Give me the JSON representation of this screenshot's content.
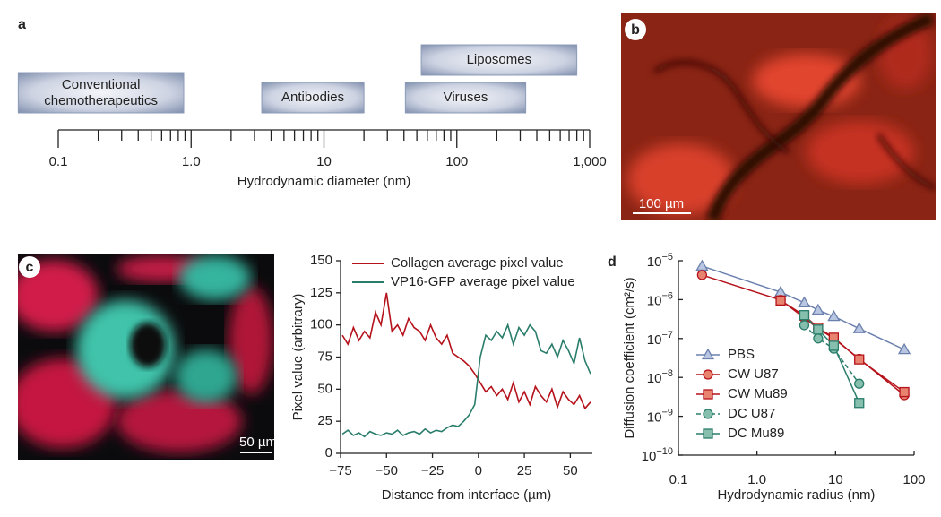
{
  "chart_data": [
    {
      "type": "range",
      "panel_label": "a",
      "xlabel": "Hydrodynamic diameter (nm)",
      "log_x": true,
      "xlim": [
        0.1,
        1000
      ],
      "xticks": [
        0.1,
        {
          "value": 1,
          "label": "1.0"
        },
        10,
        100,
        {
          "value": 1000,
          "label": "1,000"
        }
      ],
      "categories": [
        "Conventional chemotherapeutics",
        "Antibodies",
        "Viruses",
        "Liposomes"
      ],
      "ranges": [
        [
          0.05,
          0.88
        ],
        [
          3.4,
          20
        ],
        [
          41,
          330
        ],
        [
          54,
          800
        ]
      ],
      "color": "#8c9bb8"
    },
    {
      "type": "line",
      "xlabel": "Distance from interface (µm)",
      "ylabel": "Pixel value (arbitrary)",
      "xlim": [
        -75,
        62
      ],
      "ylim": [
        0,
        150
      ],
      "xticks": [
        {
          "value": -75,
          "label": "−75"
        },
        {
          "value": -50,
          "label": "−50"
        },
        {
          "value": -25,
          "label": "−25"
        },
        0,
        25,
        50
      ],
      "yticks": [
        0,
        25,
        50,
        75,
        100,
        125,
        150
      ],
      "legend": "upper center",
      "x": [
        -74,
        -71,
        -68,
        -65,
        -62,
        -59,
        -56,
        -53,
        -50,
        -47,
        -44,
        -41,
        -38,
        -35,
        -32,
        -29,
        -26,
        -23,
        -20,
        -17,
        -14,
        -11,
        -8,
        -5,
        -2,
        1,
        4,
        7,
        10,
        13,
        16,
        19,
        22,
        25,
        28,
        31,
        34,
        37,
        40,
        43,
        46,
        49,
        52,
        55,
        58,
        61
      ],
      "series": [
        {
          "name": "Collagen average pixel value",
          "color": "#b5121b",
          "values": [
            92,
            85,
            98,
            88,
            95,
            90,
            110,
            100,
            125,
            95,
            100,
            92,
            105,
            98,
            95,
            88,
            100,
            90,
            85,
            92,
            78,
            75,
            72,
            68,
            62,
            55,
            48,
            52,
            45,
            50,
            42,
            55,
            40,
            48,
            38,
            52,
            45,
            40,
            50,
            36,
            48,
            42,
            38,
            45,
            35,
            40
          ]
        },
        {
          "name": "VP16-GFP average pixel value",
          "color": "#2a7d6b",
          "values": [
            15,
            18,
            14,
            16,
            13,
            17,
            15,
            14,
            16,
            15,
            18,
            14,
            16,
            17,
            15,
            19,
            16,
            18,
            17,
            20,
            22,
            21,
            25,
            30,
            38,
            75,
            92,
            88,
            95,
            90,
            100,
            85,
            98,
            92,
            100,
            95,
            80,
            78,
            85,
            75,
            88,
            80,
            70,
            90,
            72,
            62
          ]
        }
      ]
    },
    {
      "type": "scatter",
      "panel_label": "d",
      "xlabel": "Hydrodynamic radius (nm)",
      "ylabel": "Diffusion coefficient (cm²/s)",
      "log_x": true,
      "log_y": true,
      "xlim": [
        0.1,
        100
      ],
      "ylim": [
        1e-10,
        1e-05
      ],
      "xticks": [
        0.1,
        {
          "value": 1,
          "label": "1.0"
        },
        10,
        100
      ],
      "yticks": [
        {
          "value": 1e-10,
          "label": "10−10"
        },
        {
          "value": 1e-09,
          "label": "10−9"
        },
        {
          "value": 1e-08,
          "label": "10−8"
        },
        {
          "value": 1e-07,
          "label": "10−7"
        },
        {
          "value": 1e-06,
          "label": "10−6"
        },
        {
          "value": 1e-05,
          "label": "10−5"
        }
      ],
      "legend": "lower left",
      "x": [
        0.2,
        2,
        4,
        6,
        9.5,
        20,
        75
      ],
      "series": [
        {
          "name": "PBS",
          "color": "#6b80ad",
          "fill": "#b9c6e2",
          "marker": "triangle",
          "values": [
            7.3e-06,
            1.56e-06,
            8.3e-07,
            5.4e-07,
            3.7e-07,
            1.8e-07,
            5.2e-08
          ]
        },
        {
          "name": "CW U87",
          "color": "#b5121b",
          "fill": "#e8836f",
          "marker": "circle",
          "values": [
            4.3e-06,
            9.8e-07,
            3.4e-07,
            1.8e-07,
            1e-07,
            3e-08,
            3.5e-09
          ]
        },
        {
          "name": "CW Mu89",
          "color": "#b5121b",
          "fill": "#e8836f",
          "marker": "square",
          "values": [
            null,
            9.5e-07,
            3.9e-07,
            1.9e-07,
            1.05e-07,
            2.9e-08,
            4.2e-09
          ]
        },
        {
          "name": "DC U87",
          "color": "#2a7d6b",
          "fill": "#86bfae",
          "marker": "circle",
          "dashed": true,
          "values": [
            null,
            null,
            2.2e-07,
            1e-07,
            5.5e-08,
            6.9e-09,
            null
          ]
        },
        {
          "name": "DC Mu89",
          "color": "#2a7d6b",
          "fill": "#86bfae",
          "marker": "square",
          "values": [
            null,
            null,
            4e-07,
            1.7e-07,
            6.5e-08,
            2.2e-09,
            null
          ]
        }
      ]
    }
  ],
  "images": [
    {
      "label": "b",
      "scale_bar": "100 µm"
    },
    {
      "label": "c",
      "scale_bar": "50 µm"
    }
  ]
}
